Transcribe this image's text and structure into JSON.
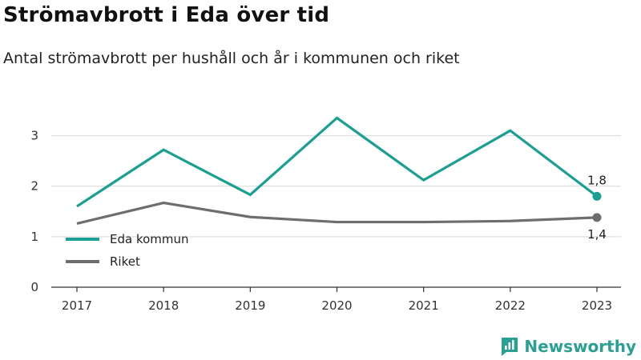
{
  "title": "Strömavbrott i Eda över tid",
  "subtitle": "Antal strömavbrott per hushåll och år i kommunen och riket",
  "brand": "Newsworthy",
  "chart_data": {
    "type": "line",
    "x": [
      "2017",
      "2018",
      "2019",
      "2020",
      "2021",
      "2022",
      "2023"
    ],
    "ylim": [
      0,
      3.5
    ],
    "yticks": [
      0,
      1,
      2,
      3
    ],
    "grid": true,
    "legend_position": "bottom-left",
    "series": [
      {
        "name": "Eda kommun",
        "color": "#1aa093",
        "values": [
          1.6,
          2.72,
          1.83,
          3.35,
          2.12,
          3.1,
          1.8
        ],
        "end_label": "1,8"
      },
      {
        "name": "Riket",
        "color": "#6e6e72",
        "values": [
          1.26,
          1.67,
          1.39,
          1.29,
          1.29,
          1.31,
          1.38
        ],
        "end_label": "1,4"
      }
    ]
  }
}
